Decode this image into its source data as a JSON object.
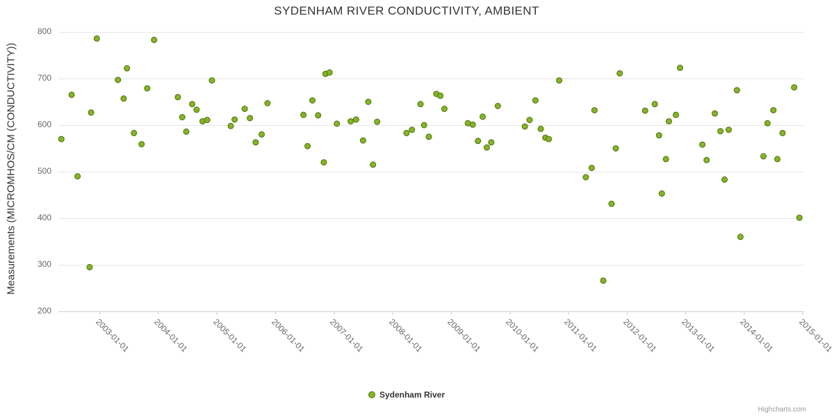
{
  "chart_data": {
    "type": "scatter",
    "title": "SYDENHAM RIVER CONDUCTIVITY, AMBIENT",
    "ylabel": "Measurements (MICROMHOS/CM (CONDUCTIVITY))",
    "xlabel": "",
    "ylim": [
      200,
      800
    ],
    "y_ticks": [
      200,
      300,
      400,
      500,
      600,
      700,
      800
    ],
    "x_ticks": [
      "2003-01-01",
      "2004-01-01",
      "2005-01-01",
      "2006-01-01",
      "2007-01-01",
      "2008-01-01",
      "2009-01-01",
      "2010-01-01",
      "2011-01-01",
      "2012-01-01",
      "2013-01-01",
      "2014-01-01",
      "2015-01-01"
    ],
    "x_min": "2002-04-19",
    "x_max": "2015-01-11",
    "grid": "horizontal",
    "grid_color": "#e6e6e6",
    "axis_line_color": "#d0d0d0",
    "title_color": "#333333",
    "tick_label_color": "#666666",
    "legend": {
      "position": "bottom",
      "items": [
        {
          "label": "Sydenham River",
          "color": "#85b427",
          "border_color": "#4e6f0f"
        }
      ]
    },
    "series": [
      {
        "name": "Sydenham River",
        "color": "#85b427",
        "border_color": "#4e6f0f",
        "points": [
          [
            "2002-05-07",
            570
          ],
          [
            "2002-07-10",
            665
          ],
          [
            "2002-08-17",
            490
          ],
          [
            "2002-11-01",
            295
          ],
          [
            "2002-11-10",
            627
          ],
          [
            "2002-12-15",
            786
          ],
          [
            "2003-04-25",
            697
          ],
          [
            "2003-05-30",
            657
          ],
          [
            "2003-06-20",
            722
          ],
          [
            "2003-08-03",
            583
          ],
          [
            "2003-09-20",
            559
          ],
          [
            "2003-10-25",
            679
          ],
          [
            "2003-12-07",
            783
          ],
          [
            "2004-05-03",
            660
          ],
          [
            "2004-05-30",
            617
          ],
          [
            "2004-06-25",
            586
          ],
          [
            "2004-08-01",
            645
          ],
          [
            "2004-08-28",
            633
          ],
          [
            "2004-10-05",
            608
          ],
          [
            "2004-11-03",
            611
          ],
          [
            "2004-12-02",
            696
          ],
          [
            "2005-03-28",
            598
          ],
          [
            "2005-04-22",
            612
          ],
          [
            "2005-06-24",
            635
          ],
          [
            "2005-07-26",
            615
          ],
          [
            "2005-09-01",
            563
          ],
          [
            "2005-10-08",
            580
          ],
          [
            "2005-11-14",
            647
          ],
          [
            "2006-06-25",
            622
          ],
          [
            "2006-07-20",
            555
          ],
          [
            "2006-08-20",
            653
          ],
          [
            "2006-09-25",
            621
          ],
          [
            "2006-10-30",
            520
          ],
          [
            "2006-11-10",
            710
          ],
          [
            "2006-12-05",
            713
          ],
          [
            "2007-01-20",
            603
          ],
          [
            "2007-04-15",
            608
          ],
          [
            "2007-05-18",
            612
          ],
          [
            "2007-07-01",
            567
          ],
          [
            "2007-08-03",
            650
          ],
          [
            "2007-09-02",
            515
          ],
          [
            "2007-09-28",
            607
          ],
          [
            "2008-03-28",
            583
          ],
          [
            "2008-05-01",
            590
          ],
          [
            "2008-06-24",
            645
          ],
          [
            "2008-07-16",
            600
          ],
          [
            "2008-08-15",
            575
          ],
          [
            "2008-10-01",
            667
          ],
          [
            "2008-10-26",
            663
          ],
          [
            "2008-11-21",
            635
          ],
          [
            "2009-04-15",
            604
          ],
          [
            "2009-05-15",
            601
          ],
          [
            "2009-06-17",
            566
          ],
          [
            "2009-07-16",
            618
          ],
          [
            "2009-08-11",
            552
          ],
          [
            "2009-09-09",
            563
          ],
          [
            "2009-10-19",
            641
          ],
          [
            "2010-04-05",
            597
          ],
          [
            "2010-05-04",
            611
          ],
          [
            "2010-06-10",
            653
          ],
          [
            "2010-07-13",
            592
          ],
          [
            "2010-08-11",
            573
          ],
          [
            "2010-09-02",
            570
          ],
          [
            "2010-11-06",
            696
          ],
          [
            "2011-04-20",
            488
          ],
          [
            "2011-05-26",
            508
          ],
          [
            "2011-06-13",
            632
          ],
          [
            "2011-08-07",
            266
          ],
          [
            "2011-09-28",
            431
          ],
          [
            "2011-10-24",
            550
          ],
          [
            "2011-11-18",
            711
          ],
          [
            "2012-04-24",
            631
          ],
          [
            "2012-06-24",
            645
          ],
          [
            "2012-07-20",
            578
          ],
          [
            "2012-08-07",
            453
          ],
          [
            "2012-09-02",
            527
          ],
          [
            "2012-09-20",
            608
          ],
          [
            "2012-11-03",
            622
          ],
          [
            "2012-11-29",
            723
          ],
          [
            "2013-04-16",
            558
          ],
          [
            "2013-05-12",
            525
          ],
          [
            "2013-07-02",
            625
          ],
          [
            "2013-08-07",
            587
          ],
          [
            "2013-09-02",
            483
          ],
          [
            "2013-09-28",
            590
          ],
          [
            "2013-11-18",
            675
          ],
          [
            "2013-12-10",
            360
          ],
          [
            "2014-05-01",
            533
          ],
          [
            "2014-05-26",
            604
          ],
          [
            "2014-07-02",
            632
          ],
          [
            "2014-07-27",
            527
          ],
          [
            "2014-08-29",
            583
          ],
          [
            "2014-11-10",
            681
          ],
          [
            "2014-12-12",
            401
          ]
        ]
      }
    ],
    "credits": "Highcharts.com"
  }
}
